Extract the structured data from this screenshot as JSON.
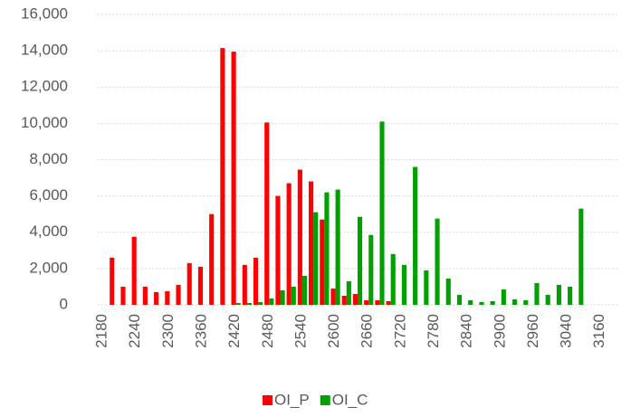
{
  "chart_data": {
    "type": "bar",
    "categories": [
      "2180",
      null,
      null,
      "2240",
      null,
      null,
      "2300",
      null,
      null,
      "2360",
      null,
      null,
      "2420",
      null,
      null,
      "2480",
      null,
      null,
      "2540",
      null,
      null,
      "2600",
      null,
      null,
      "2660",
      null,
      null,
      "2720",
      null,
      null,
      "2780",
      null,
      null,
      "2840",
      null,
      null,
      "2900",
      null,
      null,
      "2960",
      null,
      null,
      "3040",
      null,
      null,
      "3160",
      null
    ],
    "series": [
      {
        "name": "OI_P",
        "color": "#ff0000",
        "values": [
          0,
          2600,
          1000,
          3750,
          1000,
          700,
          750,
          1100,
          2300,
          2100,
          5000,
          14150,
          13950,
          2200,
          2600,
          10050,
          6000,
          6700,
          7450,
          6800,
          4700,
          900,
          500,
          600,
          250,
          250,
          200,
          0,
          0,
          0,
          0,
          0,
          0,
          0,
          0,
          0,
          0,
          0,
          0,
          0,
          0,
          0,
          0,
          0,
          0,
          0,
          0
        ]
      },
      {
        "name": "OI_C",
        "color": "#00a000",
        "values": [
          0,
          0,
          0,
          0,
          0,
          0,
          0,
          0,
          0,
          0,
          0,
          0,
          100,
          100,
          150,
          350,
          800,
          1000,
          1600,
          5100,
          6200,
          6350,
          1300,
          4850,
          3850,
          10100,
          2800,
          2200,
          7600,
          1900,
          4750,
          1450,
          550,
          250,
          150,
          200,
          850,
          300,
          250,
          1200,
          550,
          1100,
          1000,
          5300,
          0,
          0,
          0
        ]
      }
    ],
    "ylim": [
      0,
      16000
    ],
    "yticks": [
      0,
      {
        "value": 2000,
        "label": "2,000"
      },
      {
        "value": 4000,
        "label": "4,000"
      },
      {
        "value": 6000,
        "label": "6,000"
      },
      {
        "value": 8000,
        "label": "8,000"
      },
      {
        "value": 10000,
        "label": "10,000"
      },
      {
        "value": 12000,
        "label": "12,000"
      },
      {
        "value": 14000,
        "label": "14,000"
      },
      {
        "value": 16000,
        "label": "16,000"
      }
    ],
    "grid": true,
    "legend": "bottom"
  }
}
